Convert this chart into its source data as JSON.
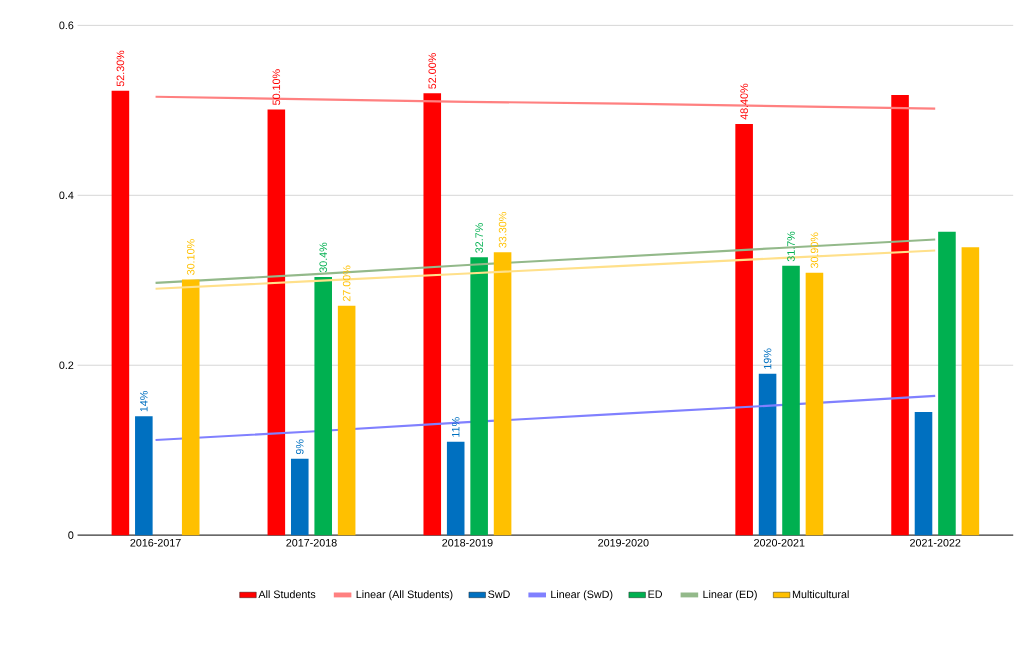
{
  "chart_data": {
    "type": "bar",
    "categories": [
      "2016-2017",
      "2017-2018",
      "2018-2019",
      "2019-2020",
      "2020-2021",
      "2021-2022"
    ],
    "ylim": [
      0,
      0.6
    ],
    "yticks": [
      0,
      0.2,
      0.4,
      0.6
    ],
    "grid": "y",
    "legend": "bottom",
    "series": [
      {
        "name": "All Students",
        "color": "#ff0000",
        "values": [
          0.523,
          0.501,
          0.52,
          null,
          0.484,
          0.518
        ],
        "value_labels": [
          "52.30%",
          "50.10%",
          "52.00%",
          null,
          "48.40%",
          null
        ]
      },
      {
        "name": "Linear (All Students)",
        "type": "line",
        "color": "#ff8080",
        "values": [
          0.516,
          0.513,
          0.51,
          0.508,
          0.505,
          0.502
        ]
      },
      {
        "name": "SwD",
        "color": "#0070c0",
        "values": [
          0.14,
          0.09,
          0.11,
          null,
          0.19,
          0.145
        ],
        "value_labels": [
          "14%",
          "9%",
          "11%",
          null,
          "19%",
          null
        ]
      },
      {
        "name": "Linear (SwD)",
        "type": "line",
        "color": "#8080ff",
        "values": [
          0.112,
          0.122,
          0.133,
          0.143,
          0.153,
          0.164
        ]
      },
      {
        "name": "ED",
        "color": "#00b050",
        "values": [
          null,
          0.304,
          0.327,
          null,
          0.317,
          0.357
        ],
        "value_labels": [
          null,
          "30.4%",
          "32.7%",
          null,
          "31.7%",
          null
        ]
      },
      {
        "name": "Linear (ED)",
        "type": "line",
        "color": "#93b98a",
        "values": [
          0.297,
          0.307,
          0.318,
          0.328,
          0.338,
          0.348
        ]
      },
      {
        "name": "Multicultural",
        "color": "#ffc000",
        "values": [
          0.301,
          0.27,
          0.333,
          null,
          0.309,
          0.339
        ],
        "value_labels": [
          "30.10%",
          "27.00%",
          "33.30%",
          null,
          "30.90%",
          null
        ]
      },
      {
        "type": "line",
        "color": "#ffe08a",
        "values": [
          0.29,
          0.299,
          0.308,
          0.317,
          0.326,
          0.335
        ]
      }
    ]
  }
}
